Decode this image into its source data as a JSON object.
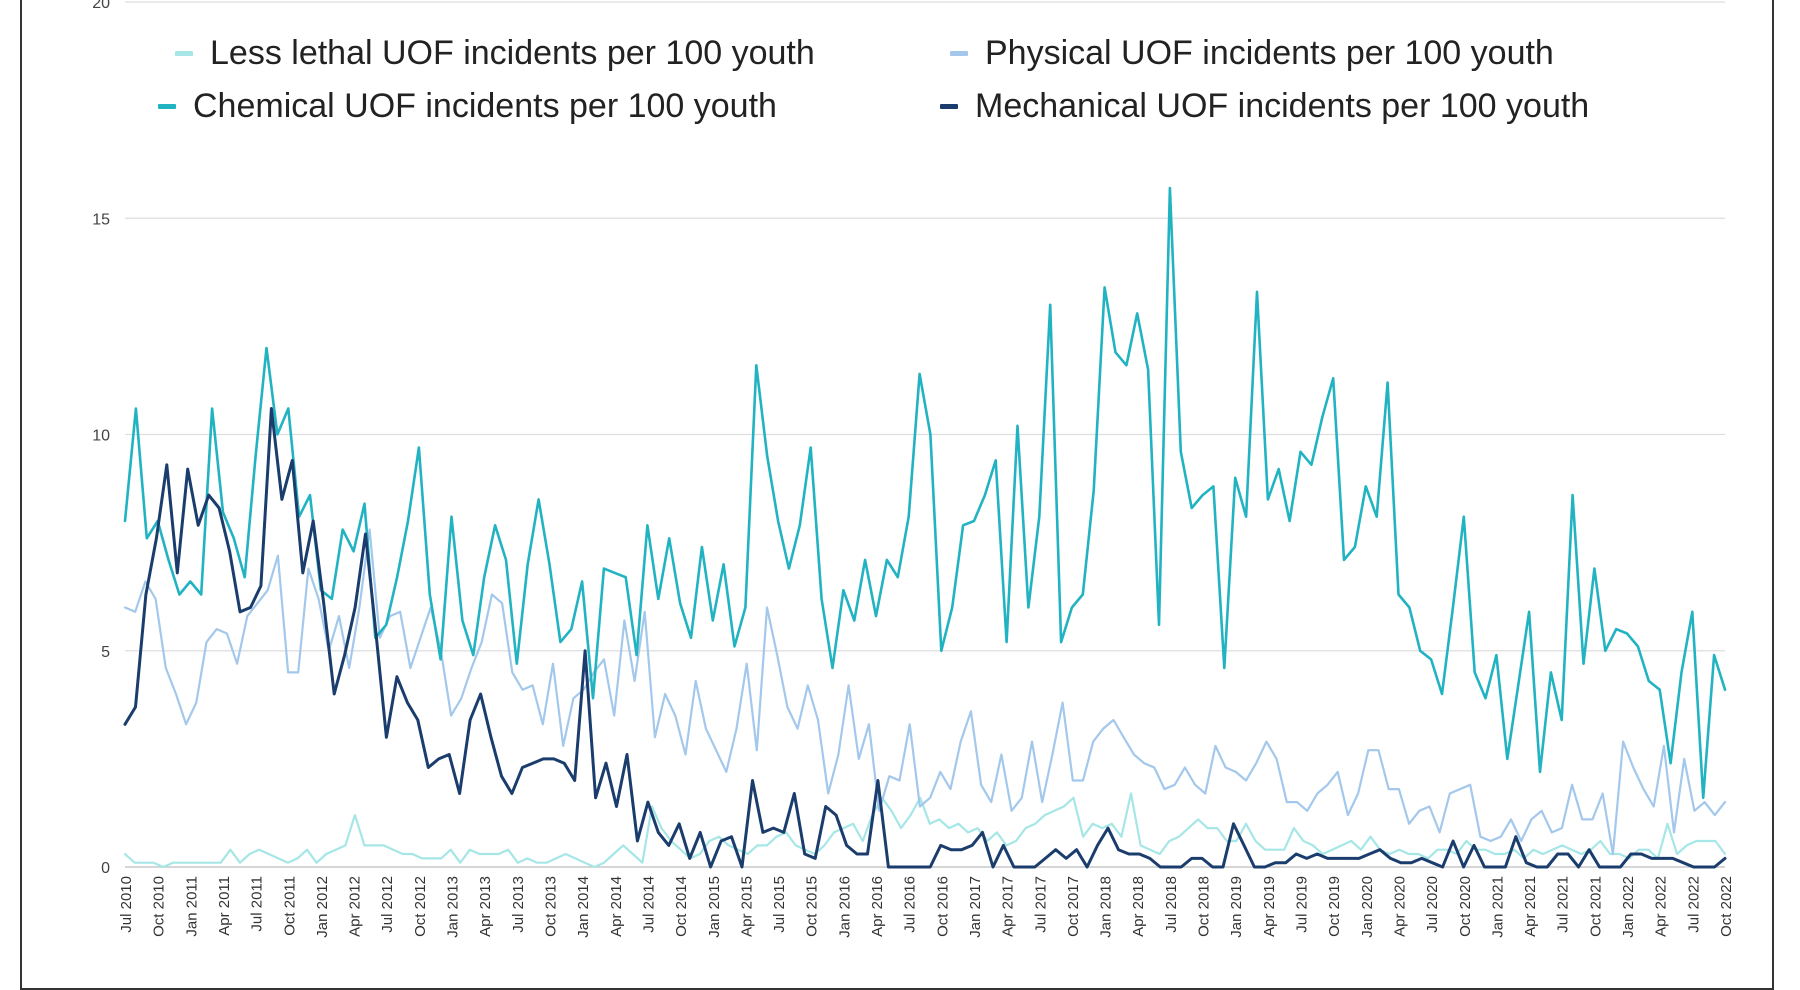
{
  "chart_data": {
    "type": "line",
    "title": "",
    "xlabel": "",
    "ylabel": "",
    "ylim": [
      0,
      20
    ],
    "y_ticks": [
      0,
      5,
      10,
      15,
      20
    ],
    "grid": true,
    "legend_position": "top",
    "x_labels": [
      "Jul 2010",
      "Oct 2010",
      "Jan 2011",
      "Apr 2011",
      "Jul 2011",
      "Oct 2011",
      "Jan 2012",
      "Apr 2012",
      "Jul 2012",
      "Oct 2012",
      "Jan 2013",
      "Apr 2013",
      "Jul 2013",
      "Oct 2013",
      "Jan 2014",
      "Apr 2014",
      "Jul 2014",
      "Oct 2014",
      "Jan 2015",
      "Apr 2015",
      "Jul 2015",
      "Oct 2015",
      "Jan 2016",
      "Apr 2016",
      "Jul 2016",
      "Oct 2016",
      "Jan 2017",
      "Apr 2017",
      "Jul 2017",
      "Oct 2017",
      "Jan 2018",
      "Apr 2018",
      "Jul 2018",
      "Oct 2018",
      "Jan 2019",
      "Apr 2019",
      "Jul 2019",
      "Oct 2019",
      "Jan 2020",
      "Apr 2020",
      "Jul 2020",
      "Oct 2020",
      "Jan 2021",
      "Apr 2021",
      "Jul 2021",
      "Oct 2021",
      "Jan 2022",
      "Apr 2022",
      "Jul 2022",
      "Oct 2022"
    ],
    "series": [
      {
        "name": "Less lethal UOF incidents per 100 youth",
        "color": "#a6e6e6",
        "values": [
          0.3,
          0.1,
          0.1,
          0.1,
          0.0,
          0.1,
          0.1,
          0.1,
          0.1,
          0.1,
          0.1,
          0.4,
          0.1,
          0.3,
          0.4,
          0.3,
          0.2,
          0.1,
          0.2,
          0.4,
          0.1,
          0.3,
          0.4,
          0.5,
          1.2,
          0.5,
          0.5,
          0.5,
          0.4,
          0.3,
          0.3,
          0.2,
          0.2,
          0.2,
          0.4,
          0.1,
          0.4,
          0.3,
          0.3,
          0.3,
          0.4,
          0.1,
          0.2,
          0.1,
          0.1,
          0.2,
          0.3,
          0.2,
          0.1,
          0.0,
          0.1,
          0.3,
          0.5,
          0.3,
          0.1,
          1.4,
          0.9,
          0.6,
          0.4,
          0.2,
          0.3,
          0.6,
          0.7,
          0.5,
          0.4,
          0.3,
          0.5,
          0.5,
          0.7,
          0.8,
          0.5,
          0.4,
          0.3,
          0.5,
          0.8,
          0.9,
          1.0,
          0.6,
          1.2,
          1.6,
          1.3,
          0.9,
          1.2,
          1.6,
          1.0,
          1.1,
          0.9,
          1.0,
          0.8,
          0.9,
          0.6,
          0.8,
          0.5,
          0.6,
          0.9,
          1.0,
          1.2,
          1.3,
          1.4,
          1.6,
          0.7,
          1.0,
          0.9,
          1.0,
          0.7,
          1.7,
          0.5,
          0.4,
          0.3,
          0.6,
          0.7,
          0.9,
          1.1,
          0.9,
          0.9,
          0.6,
          0.6,
          1.0,
          0.6,
          0.4,
          0.4,
          0.4,
          0.9,
          0.6,
          0.5,
          0.3,
          0.4,
          0.5,
          0.6,
          0.4,
          0.7,
          0.4,
          0.3,
          0.4,
          0.3,
          0.3,
          0.2,
          0.4,
          0.4,
          0.3,
          0.6,
          0.4,
          0.4,
          0.3,
          0.3,
          0.4,
          0.2,
          0.4,
          0.3,
          0.4,
          0.5,
          0.4,
          0.3,
          0.4,
          0.6,
          0.3,
          0.3,
          0.2,
          0.4,
          0.4,
          0.2,
          1.0,
          0.3,
          0.5,
          0.6,
          0.6,
          0.6,
          0.3
        ]
      },
      {
        "name": "Physical UOF incidents per 100 youth",
        "color": "#a3c8ec",
        "values": [
          6.0,
          5.9,
          6.6,
          6.2,
          4.6,
          4.0,
          3.3,
          3.8,
          5.2,
          5.5,
          5.4,
          4.7,
          5.8,
          6.1,
          6.4,
          7.2,
          4.5,
          4.5,
          6.9,
          6.2,
          5.0,
          5.8,
          4.6,
          6.0,
          7.8,
          5.3,
          5.8,
          5.9,
          4.6,
          5.3,
          6.0,
          5.0,
          3.5,
          3.9,
          4.6,
          5.2,
          6.3,
          6.1,
          4.5,
          4.1,
          4.2,
          3.3,
          4.7,
          2.8,
          3.9,
          4.1,
          4.5,
          4.8,
          3.5,
          5.7,
          4.3,
          5.9,
          3.0,
          4.0,
          3.5,
          2.6,
          4.3,
          3.2,
          2.7,
          2.2,
          3.2,
          4.7,
          2.7,
          6.0,
          4.9,
          3.7,
          3.2,
          4.2,
          3.4,
          1.7,
          2.6,
          4.2,
          2.5,
          3.3,
          1.3,
          2.1,
          2.0,
          3.3,
          1.4,
          1.6,
          2.2,
          1.8,
          2.9,
          3.6,
          1.9,
          1.5,
          2.6,
          1.3,
          1.6,
          2.9,
          1.5,
          2.6,
          3.8,
          2.0,
          2.0,
          2.9,
          3.2,
          3.4,
          3.0,
          2.6,
          2.4,
          2.3,
          1.8,
          1.9,
          2.3,
          1.9,
          1.7,
          2.8,
          2.3,
          2.2,
          2.0,
          2.4,
          2.9,
          2.5,
          1.5,
          1.5,
          1.3,
          1.7,
          1.9,
          2.2,
          1.2,
          1.7,
          2.7,
          2.7,
          1.8,
          1.8,
          1.0,
          1.3,
          1.4,
          0.8,
          1.7,
          1.8,
          1.9,
          0.7,
          0.6,
          0.7,
          1.1,
          0.6,
          1.1,
          1.3,
          0.8,
          0.9,
          1.9,
          1.1,
          1.1,
          1.7,
          0.3,
          2.9,
          2.3,
          1.8,
          1.4,
          2.8,
          0.8,
          2.5,
          1.3,
          1.5,
          1.2,
          1.5
        ]
      },
      {
        "name": "Chemical UOF incidents per 100 youth",
        "color": "#22b3c2",
        "values": [
          8.0,
          10.6,
          7.6,
          8.0,
          7.1,
          6.3,
          6.6,
          6.3,
          10.6,
          8.2,
          7.6,
          6.7,
          9.5,
          12.0,
          10.0,
          10.6,
          8.1,
          8.6,
          6.4,
          6.2,
          7.8,
          7.3,
          8.4,
          5.3,
          5.6,
          6.7,
          8.0,
          9.7,
          6.3,
          4.8,
          8.1,
          5.7,
          4.9,
          6.7,
          7.9,
          7.1,
          4.7,
          7.0,
          8.5,
          7.0,
          5.2,
          5.5,
          6.6,
          3.9,
          6.9,
          6.8,
          6.7,
          4.9,
          7.9,
          6.2,
          7.6,
          6.1,
          5.3,
          7.4,
          5.7,
          7.0,
          5.1,
          6.0,
          11.6,
          9.5,
          8.0,
          6.9,
          7.9,
          9.7,
          6.2,
          4.6,
          6.4,
          5.7,
          7.1,
          5.8,
          7.1,
          6.7,
          8.1,
          11.4,
          10.0,
          5.0,
          6.0,
          7.9,
          8.0,
          8.6,
          9.4,
          5.2,
          10.2,
          6.0,
          8.1,
          13.0,
          5.2,
          6.0,
          6.3,
          8.7,
          13.4,
          11.9,
          11.6,
          12.8,
          11.5,
          5.6,
          15.7,
          9.6,
          8.3,
          8.6,
          8.8,
          4.6,
          9.0,
          8.1,
          13.3,
          8.5,
          9.2,
          8.0,
          9.6,
          9.3,
          10.4,
          11.3,
          7.1,
          7.4,
          8.8,
          8.1,
          11.2,
          6.3,
          6.0,
          5.0,
          4.8,
          4.0,
          6.0,
          8.1,
          4.5,
          3.9,
          4.9,
          2.5,
          4.2,
          5.9,
          2.2,
          4.5,
          3.4,
          8.6,
          4.7,
          6.9,
          5.0,
          5.5,
          5.4,
          5.1,
          4.3,
          4.1,
          2.4,
          4.5,
          5.9,
          1.6,
          4.9,
          4.1
        ]
      },
      {
        "name": "Mechanical UOF incidents per 100 youth",
        "color": "#1b3d6d",
        "values": [
          3.3,
          3.7,
          6.3,
          7.6,
          9.3,
          6.8,
          9.2,
          7.9,
          8.6,
          8.3,
          7.3,
          5.9,
          6.0,
          6.5,
          10.6,
          8.5,
          9.4,
          6.8,
          8.0,
          6.1,
          4.0,
          4.9,
          6.0,
          7.7,
          5.4,
          3.0,
          4.4,
          3.8,
          3.4,
          2.3,
          2.5,
          2.6,
          1.7,
          3.4,
          4.0,
          3.0,
          2.1,
          1.7,
          2.3,
          2.4,
          2.5,
          2.5,
          2.4,
          2.0,
          5.0,
          1.6,
          2.4,
          1.4,
          2.6,
          0.6,
          1.5,
          0.8,
          0.5,
          1.0,
          0.2,
          0.8,
          0.0,
          0.6,
          0.7,
          0.0,
          2.0,
          0.8,
          0.9,
          0.8,
          1.7,
          0.3,
          0.2,
          1.4,
          1.2,
          0.5,
          0.3,
          0.3,
          2.0,
          0.0,
          0.0,
          0.0,
          0.0,
          0.0,
          0.5,
          0.4,
          0.4,
          0.5,
          0.8,
          0.0,
          0.5,
          0.0,
          0.0,
          0.0,
          0.2,
          0.4,
          0.2,
          0.4,
          0.0,
          0.5,
          0.9,
          0.4,
          0.3,
          0.3,
          0.2,
          0.0,
          0.0,
          0.0,
          0.2,
          0.2,
          0.0,
          0.0,
          1.0,
          0.5,
          0.0,
          0.0,
          0.1,
          0.1,
          0.3,
          0.2,
          0.3,
          0.2,
          0.2,
          0.2,
          0.2,
          0.3,
          0.4,
          0.2,
          0.1,
          0.1,
          0.2,
          0.1,
          0.0,
          0.6,
          0.0,
          0.5,
          0.0,
          0.0,
          0.0,
          0.7,
          0.1,
          0.0,
          0.0,
          0.3,
          0.3,
          0.0,
          0.4,
          0.0,
          0.0,
          0.0,
          0.3,
          0.3,
          0.2,
          0.2,
          0.2,
          0.1,
          0.0,
          0.0,
          0.0,
          0.2
        ]
      }
    ]
  }
}
